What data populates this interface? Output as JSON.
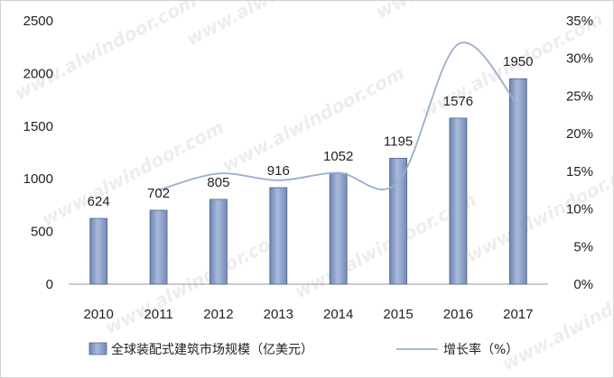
{
  "chart_data": {
    "type": "bar",
    "categories": [
      "2010",
      "2011",
      "2012",
      "2013",
      "2014",
      "2015",
      "2016",
      "2017"
    ],
    "series": [
      {
        "name": "全球装配式建筑市场规模（亿美元）",
        "type": "bar",
        "axis": "left",
        "values": [
          624,
          702,
          805,
          916,
          1052,
          1195,
          1576,
          1950
        ],
        "color": "#8a9fc7"
      },
      {
        "name": "增长率（%）",
        "type": "line",
        "axis": "right",
        "values": [
          null,
          12.5,
          14.7,
          13.8,
          14.8,
          13.6,
          31.9,
          23.7
        ],
        "color": "#9aaed0"
      }
    ],
    "y_left": {
      "lim": [
        0,
        2500
      ],
      "ticks": [
        "0",
        "500",
        "1000",
        "1500",
        "2000",
        "2500"
      ]
    },
    "y_right": {
      "lim": [
        0,
        35
      ],
      "ticks": [
        "0%",
        "5%",
        "10%",
        "15%",
        "20%",
        "25%",
        "30%",
        "35%"
      ]
    },
    "grid": false,
    "legend": "bottom",
    "data_labels": [
      "624",
      "702",
      "805",
      "916",
      "1052",
      "1195",
      "1576",
      "1950"
    ],
    "watermark": "www.alwindoor.com"
  }
}
